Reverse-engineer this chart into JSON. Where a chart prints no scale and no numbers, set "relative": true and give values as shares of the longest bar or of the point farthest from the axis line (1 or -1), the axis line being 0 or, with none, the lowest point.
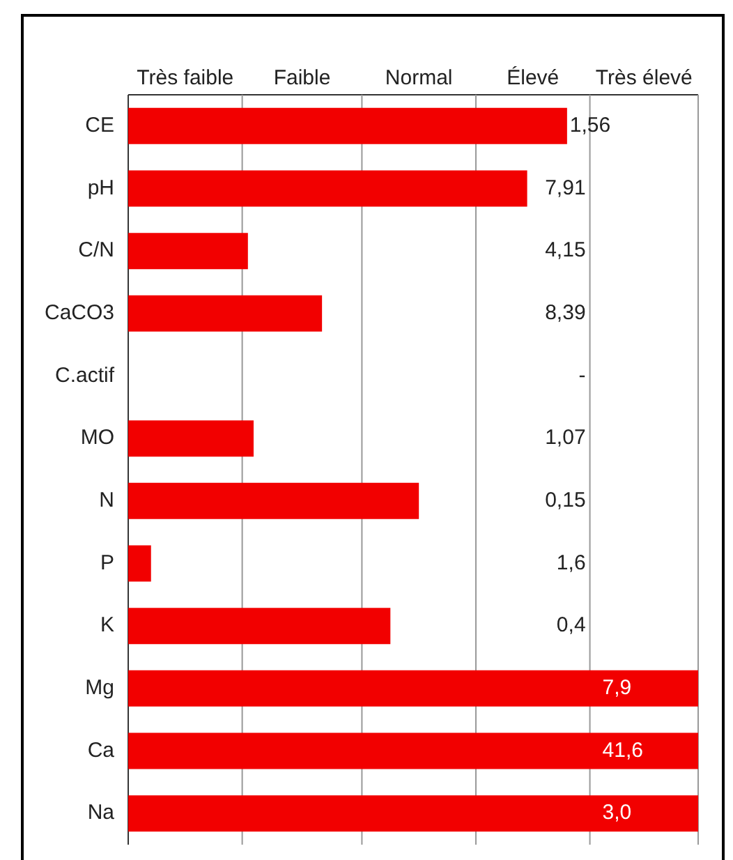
{
  "chart_data": {
    "type": "bar",
    "orientation": "horizontal",
    "relative": true,
    "categories": [
      "CE",
      "pH",
      "C/N",
      "CaCO3",
      "C.actif",
      "MO",
      "N",
      "P",
      "K",
      "Mg",
      "Ca",
      "Na"
    ],
    "values": [
      0.77,
      0.7,
      0.21,
      0.34,
      null,
      0.22,
      0.51,
      0.04,
      0.46,
      1,
      1,
      1
    ],
    "color": "#f20000",
    "ref_lines": [
      {
        "axis": "x",
        "value": 0.2,
        "label": "Très faible"
      },
      {
        "axis": "x",
        "value": 0.41,
        "label": "Faible"
      },
      {
        "axis": "x",
        "value": 0.61,
        "label": "Normal"
      },
      {
        "axis": "x",
        "value": 0.81,
        "label": "Élevé"
      },
      {
        "axis": "x",
        "value": 1,
        "label": "Très élevé"
      }
    ],
    "annotations": [
      "1,56",
      "7,91",
      "4,15",
      "8,39",
      "-",
      "1,07",
      "0,15",
      "1,6",
      "0,4",
      "7,9",
      "41,6",
      "3,0"
    ],
    "legend": false
  }
}
